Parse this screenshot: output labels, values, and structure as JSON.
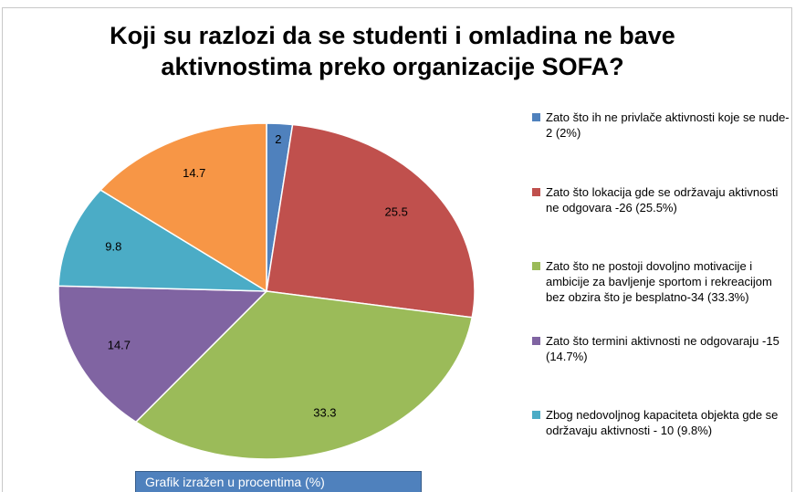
{
  "chart_data": {
    "type": "pie",
    "title": "Koji su razlozi da se studenti i omladina ne bave aktivnostima preko organizacije SOFA?",
    "categories": [
      "Zato što ih ne privlače aktivnosti koje se nude-2 (2%)",
      "Zato što lokacija gde se održavaju aktivnosti ne odgovara -26 (25.5%)",
      "Zato što ne postoji dovoljno motivacije i ambicije za bavljenje sportom i rekreacijom bez obzira što je besplatno-34 (33.3%)",
      "Zato što termini aktivnosti ne odgovaraju -15 (14.7%)",
      "Zbog nedovoljnog kapaciteta objekta gde se održavaju aktivnosti - 10 (9.8%)",
      null
    ],
    "values": [
      2,
      25.5,
      33.3,
      14.7,
      9.8,
      14.7
    ],
    "colors": [
      "#4f81bd",
      "#c0504d",
      "#9bbb59",
      "#8064a2",
      "#4bacc6",
      "#f79646"
    ],
    "annotation": "Grafik izražen u procentima (%)"
  }
}
